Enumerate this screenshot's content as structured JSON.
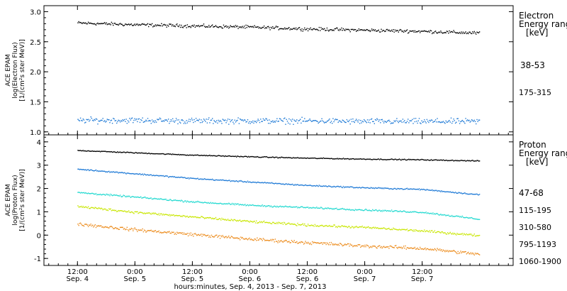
{
  "colors": {
    "electron_38_53": "#000000",
    "electron_175_315": "#1f7ad6",
    "proton_47_68": "#000000",
    "proton_115_195": "#1f7ad6",
    "proton_310_580": "#22d9d0",
    "proton_795_1193": "#c8e600",
    "proton_1060_1900": "#ec8a1a"
  },
  "chart_data": [
    {
      "type": "scatter",
      "panel": "electron",
      "ylabel_lines": [
        "ACE EPAM",
        "log(Electron Flux)",
        "[1/(cm²s ster MeV)]"
      ],
      "ylim": [
        0.95,
        3.1
      ],
      "yticks": [
        "1.0",
        "1.5",
        "2.0",
        "2.5",
        "3.0"
      ],
      "ytick_values": [
        1.0,
        1.5,
        2.0,
        2.5,
        3.0
      ],
      "legend_title": [
        "Electron",
        "Energy ranges",
        "[keV]"
      ],
      "series": [
        {
          "name": "38-53",
          "color_key": "electron_38_53",
          "x": [
            0,
            12,
            24,
            36,
            48,
            60,
            72,
            84
          ],
          "y": [
            2.82,
            2.79,
            2.77,
            2.75,
            2.72,
            2.7,
            2.68,
            2.65
          ],
          "noise": 0.04
        },
        {
          "name": "175-315",
          "color_key": "electron_175_315",
          "x": [
            0,
            12,
            24,
            36,
            48,
            60,
            72,
            84
          ],
          "y": [
            1.2,
            1.2,
            1.19,
            1.19,
            1.19,
            1.18,
            1.18,
            1.18
          ],
          "noise": 0.07
        }
      ]
    },
    {
      "type": "scatter",
      "panel": "proton",
      "ylabel_lines": [
        "ACE EPAM",
        "log(Proton Flux)",
        "[1/(cm²s ster MeV)]"
      ],
      "ylim": [
        -1.3,
        4.3
      ],
      "yticks": [
        "-1",
        "0",
        "1",
        "2",
        "3",
        "4"
      ],
      "ytick_values": [
        -1,
        0,
        1,
        2,
        3,
        4
      ],
      "legend_title": [
        "Proton",
        "Energy ranges",
        "[keV]"
      ],
      "series": [
        {
          "name": "47-68",
          "color_key": "proton_47_68",
          "x": [
            0,
            12,
            24,
            36,
            48,
            60,
            72,
            84
          ],
          "y": [
            3.65,
            3.55,
            3.45,
            3.38,
            3.32,
            3.28,
            3.25,
            3.2
          ],
          "noise": 0.03
        },
        {
          "name": "115-195",
          "color_key": "proton_115_195",
          "x": [
            0,
            12,
            24,
            36,
            48,
            60,
            72,
            84
          ],
          "y": [
            2.85,
            2.65,
            2.45,
            2.3,
            2.15,
            2.05,
            1.98,
            1.75
          ],
          "noise": 0.04
        },
        {
          "name": "310-580",
          "color_key": "proton_310_580",
          "x": [
            0,
            12,
            24,
            36,
            48,
            60,
            72,
            84
          ],
          "y": [
            1.85,
            1.65,
            1.45,
            1.3,
            1.2,
            1.1,
            1.0,
            0.7
          ],
          "noise": 0.05
        },
        {
          "name": "795-1193",
          "color_key": "proton_795_1193",
          "x": [
            0,
            12,
            24,
            36,
            48,
            60,
            72,
            84
          ],
          "y": [
            1.25,
            1.0,
            0.8,
            0.6,
            0.45,
            0.35,
            0.2,
            0.0
          ],
          "noise": 0.07
        },
        {
          "name": "1060-1900",
          "color_key": "proton_1060_1900",
          "x": [
            0,
            12,
            24,
            36,
            48,
            60,
            72,
            84
          ],
          "y": [
            0.5,
            0.25,
            0.05,
            -0.15,
            -0.3,
            -0.45,
            -0.55,
            -0.8
          ],
          "noise": 0.1
        }
      ]
    }
  ],
  "x_axis": {
    "xlim": [
      -7,
      91
    ],
    "ticks": [
      {
        "x": 0,
        "time": "12:00",
        "date": "Sep. 4"
      },
      {
        "x": 12,
        "time": "0:00",
        "date": "Sep. 5"
      },
      {
        "x": 24,
        "time": "12:00",
        "date": "Sep. 5"
      },
      {
        "x": 36,
        "time": "0:00",
        "date": "Sep. 6"
      },
      {
        "x": 48,
        "time": "12:00",
        "date": "Sep. 6"
      },
      {
        "x": 60,
        "time": "0:00",
        "date": "Sep. 7"
      },
      {
        "x": 72,
        "time": "12:00",
        "date": "Sep. 7"
      }
    ],
    "xlabel": "hours:minutes, Sep.  4, 2013 - Sep.  7, 2013"
  }
}
